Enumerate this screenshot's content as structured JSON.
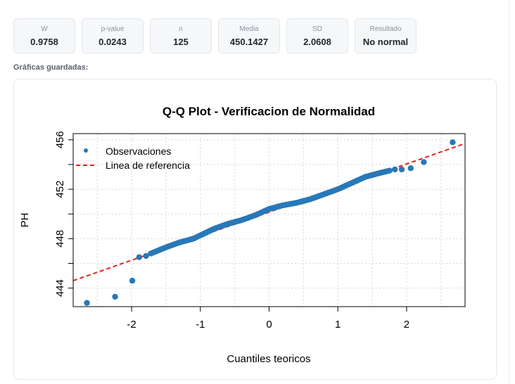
{
  "stats": [
    {
      "label": "W",
      "value": "0.9758"
    },
    {
      "label": "p-value",
      "value": "0.0243"
    },
    {
      "label": "n",
      "value": "125"
    },
    {
      "label": "Media",
      "value": "450.1427"
    },
    {
      "label": "SD",
      "value": "2.0608"
    },
    {
      "label": "Resultado",
      "value": "No normal"
    }
  ],
  "section_label": "Gráficas guardadas:",
  "chart_data": {
    "type": "scatter",
    "title": "Q-Q Plot - Verificacion de Normalidad",
    "xlabel": "Cuantiles teoricos",
    "ylabel": "PH",
    "xlim": [
      -2.85,
      2.85
    ],
    "ylim": [
      442.5,
      456.5
    ],
    "x_ticks": [
      "-2",
      "-1",
      "0",
      "1",
      "2"
    ],
    "y_ticks": [
      "444",
      "448",
      "452",
      "456"
    ],
    "grid": true,
    "legend_position": "top-left",
    "legend": [
      "Observaciones",
      "Linea de referencia"
    ],
    "series": [
      {
        "name": "Observaciones",
        "kind": "points",
        "color": "#2878b8",
        "x": [
          -2.65,
          -2.24,
          -1.99,
          -1.89,
          -1.79
        ],
        "y": [
          442.8,
          443.3,
          444.6,
          446.5,
          446.6
        ]
      },
      {
        "name": "Linea de referencia",
        "kind": "line",
        "color": "#e8201a",
        "dash": true,
        "x": [
          -2.85,
          2.85
        ],
        "y": [
          444.6,
          455.7
        ]
      }
    ],
    "body_curve": {
      "color": "#2878b8",
      "x": [
        -1.72,
        -1.5,
        -1.3,
        -1.1,
        -0.95,
        -0.8,
        -0.6,
        -0.4,
        -0.2,
        0.0,
        0.2,
        0.4,
        0.6,
        0.8,
        1.0,
        1.2,
        1.4,
        1.6,
        1.75
      ],
      "y": [
        446.8,
        447.3,
        447.7,
        448.0,
        448.4,
        448.8,
        449.2,
        449.5,
        449.9,
        450.4,
        450.7,
        450.9,
        451.2,
        451.6,
        452.0,
        452.5,
        453.0,
        453.3,
        453.5
      ]
    },
    "upper_points": {
      "color": "#2878b8",
      "x": [
        1.83,
        1.93,
        2.06,
        2.25,
        2.67
      ],
      "y": [
        453.6,
        453.6,
        453.7,
        454.2,
        455.8
      ]
    }
  }
}
